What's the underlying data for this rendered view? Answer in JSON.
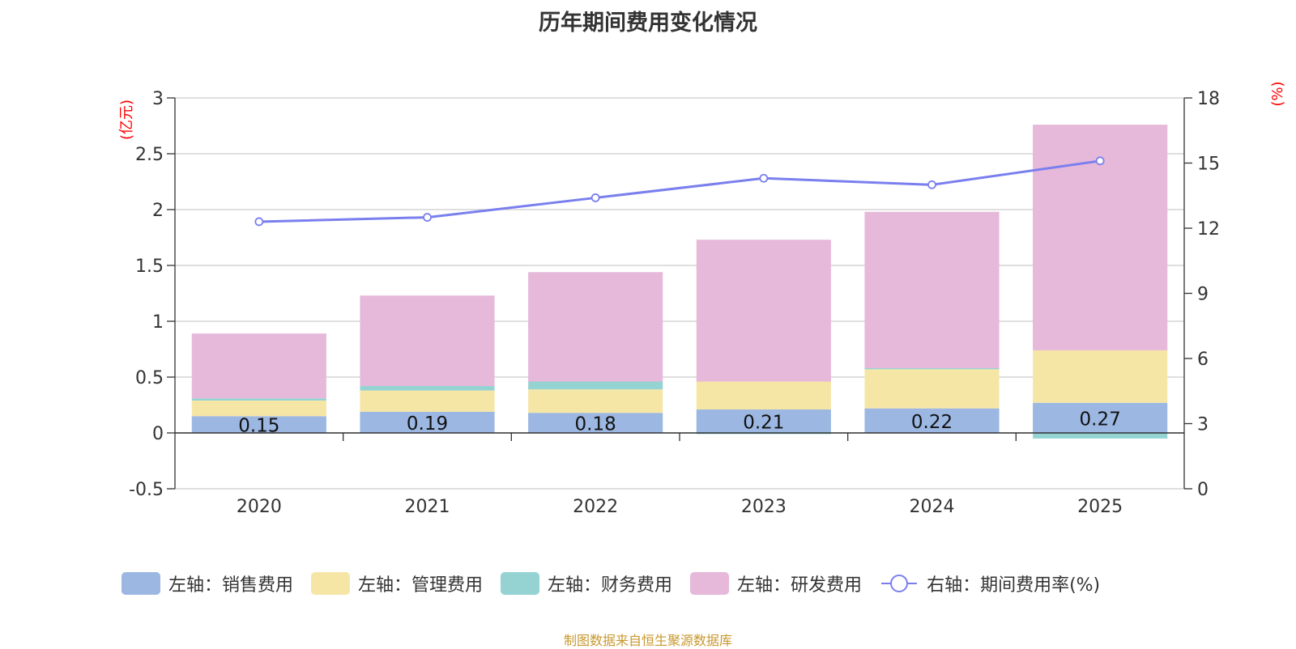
{
  "title": "历年期间费用变化情况",
  "source": "制图数据来自恒生聚源数据库",
  "source_color": "#c8982f",
  "unit_color": "#ff0000",
  "colors": {
    "sales": "#9bb7e2",
    "admin": "#f6e6a6",
    "finance": "#95d3d3",
    "rnd": "#e6b8d9",
    "rate": "#7a7fee"
  },
  "legend": [
    {
      "key": "sales",
      "label": "左轴：销售费用"
    },
    {
      "key": "admin",
      "label": "左轴：管理费用"
    },
    {
      "key": "finance",
      "label": "左轴：财务费用"
    },
    {
      "key": "rnd",
      "label": "左轴：研发费用"
    },
    {
      "key": "rate",
      "label": "右轴：期间费用率(%)"
    }
  ],
  "chart_data": {
    "type": "bar",
    "stacked": true,
    "categories": [
      "2020",
      "2021",
      "2022",
      "2023",
      "2024",
      "2025"
    ],
    "left_axis": {
      "unit": "(亿元)",
      "ylim": [
        -0.5,
        3
      ],
      "ticks": [
        -0.5,
        0,
        0.5,
        1,
        1.5,
        2,
        2.5,
        3
      ],
      "tick_labels": [
        "-0.5",
        "0",
        "0.5",
        "1",
        "1.5",
        "2",
        "2.5",
        "3"
      ]
    },
    "right_axis": {
      "unit": "(%)",
      "ylim": [
        0,
        18
      ],
      "ticks": [
        0,
        3,
        6,
        9,
        12,
        15,
        18
      ],
      "tick_labels": [
        "0",
        "3",
        "6",
        "9",
        "12",
        "15",
        "18"
      ]
    },
    "series": [
      {
        "key": "sales",
        "name": "左轴：销售费用",
        "axis": "left",
        "values": [
          0.15,
          0.19,
          0.18,
          0.21,
          0.22,
          0.27
        ],
        "labels": [
          "0.15",
          "0.19",
          "0.18",
          "0.21",
          "0.22",
          "0.27"
        ]
      },
      {
        "key": "admin",
        "name": "左轴：管理费用",
        "axis": "left",
        "values": [
          0.14,
          0.19,
          0.21,
          0.25,
          0.35,
          0.47
        ]
      },
      {
        "key": "finance",
        "name": "左轴：财务费用",
        "axis": "left",
        "values": [
          0.02,
          0.04,
          0.07,
          -0.01,
          0.01,
          -0.05
        ]
      },
      {
        "key": "rnd",
        "name": "左轴：研发费用",
        "axis": "left",
        "values": [
          0.58,
          0.81,
          0.98,
          1.27,
          1.4,
          2.02
        ]
      },
      {
        "key": "rate",
        "name": "右轴：期间费用率(%)",
        "axis": "right",
        "type": "line",
        "values": [
          12.3,
          12.5,
          13.4,
          14.3,
          14.0,
          15.1
        ]
      }
    ]
  }
}
